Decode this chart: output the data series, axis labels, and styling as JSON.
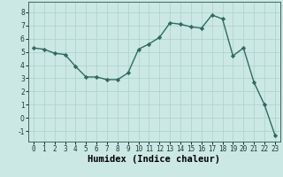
{
  "x": [
    0,
    1,
    2,
    3,
    4,
    5,
    6,
    7,
    8,
    9,
    10,
    11,
    12,
    13,
    14,
    15,
    16,
    17,
    18,
    19,
    20,
    21,
    22,
    23
  ],
  "y": [
    5.3,
    5.2,
    4.9,
    4.8,
    3.9,
    3.1,
    3.1,
    2.9,
    2.9,
    3.4,
    5.2,
    5.6,
    6.1,
    7.2,
    7.1,
    6.9,
    6.8,
    7.8,
    7.5,
    4.7,
    5.3,
    2.7,
    1.0,
    -1.3
  ],
  "line_color": "#2e6b5e",
  "marker": "D",
  "marker_size": 2.2,
  "linewidth": 1.0,
  "xlabel": "Humidex (Indice chaleur)",
  "xlim": [
    -0.5,
    23.5
  ],
  "ylim": [
    -1.8,
    8.8
  ],
  "yticks": [
    -1,
    0,
    1,
    2,
    3,
    4,
    5,
    6,
    7,
    8
  ],
  "xticks": [
    0,
    1,
    2,
    3,
    4,
    5,
    6,
    7,
    8,
    9,
    10,
    11,
    12,
    13,
    14,
    15,
    16,
    17,
    18,
    19,
    20,
    21,
    22,
    23
  ],
  "xtick_labels": [
    "0",
    "1",
    "2",
    "3",
    "4",
    "5",
    "6",
    "7",
    "8",
    "9",
    "10",
    "11",
    "12",
    "13",
    "14",
    "15",
    "16",
    "17",
    "18",
    "19",
    "20",
    "21",
    "22",
    "23"
  ],
  "background_color": "#cce8e4",
  "grid_color": "#b0d4ce",
  "plot_bg": "#cce8e4",
  "tick_fontsize": 5.5,
  "xlabel_fontsize": 7.5,
  "xlabel_fontweight": "bold"
}
